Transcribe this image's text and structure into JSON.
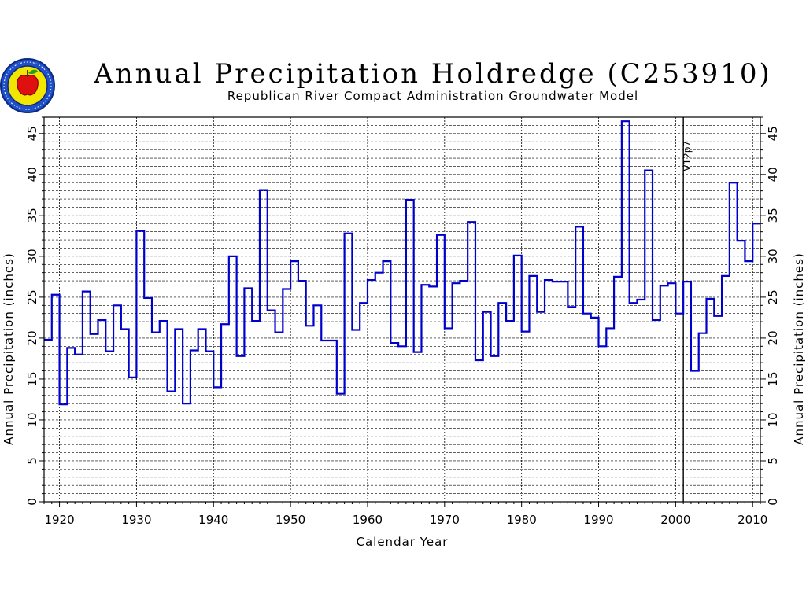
{
  "header": {
    "title": "Annual Precipitation Holdredge (C253910)",
    "subtitle": "Republican River Compact Administration Groundwater Model"
  },
  "chart_data": {
    "type": "line",
    "step": true,
    "title": "Annual Precipitation Holdredge (C253910)",
    "subtitle": "Republican River Compact Administration Groundwater Model",
    "xlabel": "Calendar Year",
    "ylabel": "Annual Precipitation (inches)",
    "xlim": [
      1918,
      2011
    ],
    "ylim": [
      0,
      47
    ],
    "x_ticks": [
      1920,
      1930,
      1940,
      1950,
      1960,
      1970,
      1980,
      1990,
      2000,
      2010
    ],
    "y_ticks": [
      0,
      5,
      10,
      15,
      20,
      25,
      30,
      35,
      40,
      45
    ],
    "grid": true,
    "annotation": {
      "text": "V12p7",
      "x": 2001
    },
    "line_color": "#0000cc",
    "series": [
      {
        "x": [
          1918,
          1919,
          1920,
          1921,
          1922,
          1923,
          1924,
          1925,
          1926,
          1927,
          1928,
          1929,
          1930,
          1931,
          1932,
          1933,
          1934,
          1935,
          1936,
          1937,
          1938,
          1939,
          1940,
          1941,
          1942,
          1943,
          1944,
          1945,
          1946,
          1947,
          1948,
          1949,
          1950,
          1951,
          1952,
          1953,
          1954,
          1955,
          1956,
          1957,
          1958,
          1959,
          1960,
          1961,
          1962,
          1963,
          1964,
          1965,
          1966,
          1967,
          1968,
          1969,
          1970,
          1971,
          1972,
          1973,
          1974,
          1975,
          1976,
          1977,
          1978,
          1979,
          1980,
          1981,
          1982,
          1983,
          1984,
          1985,
          1986,
          1987,
          1988,
          1989,
          1990,
          1991,
          1992,
          1993,
          1994,
          1995,
          1996,
          1997,
          1998,
          1999,
          2000,
          2001,
          2002,
          2003,
          2004,
          2005,
          2006,
          2007,
          2008,
          2009,
          2010
        ],
        "values": [
          19.8,
          25.3,
          11.9,
          18.8,
          18.0,
          25.7,
          20.5,
          22.2,
          18.4,
          24.0,
          21.1,
          15.2,
          33.1,
          24.9,
          20.7,
          22.1,
          13.5,
          21.1,
          12.0,
          18.5,
          21.1,
          18.4,
          14.0,
          21.7,
          30.0,
          17.8,
          26.1,
          22.1,
          38.1,
          23.4,
          20.7,
          26.0,
          29.4,
          27.0,
          21.5,
          24.0,
          19.7,
          19.7,
          13.2,
          32.8,
          21.0,
          24.3,
          27.1,
          28.0,
          29.4,
          19.4,
          19.0,
          36.9,
          18.3,
          26.5,
          26.3,
          32.6,
          21.2,
          26.7,
          27.0,
          34.2,
          17.3,
          23.2,
          17.8,
          24.3,
          22.1,
          30.1,
          20.8,
          27.6,
          23.2,
          27.1,
          26.9,
          26.9,
          23.8,
          33.6,
          23.0,
          22.5,
          19.0,
          21.2,
          27.5,
          46.5,
          24.3,
          24.7,
          40.5,
          22.2,
          26.4,
          26.7,
          23.0,
          26.9,
          16.0,
          20.6,
          24.8,
          22.7,
          27.6,
          39.0,
          31.9,
          29.4,
          34.0
        ]
      }
    ]
  }
}
